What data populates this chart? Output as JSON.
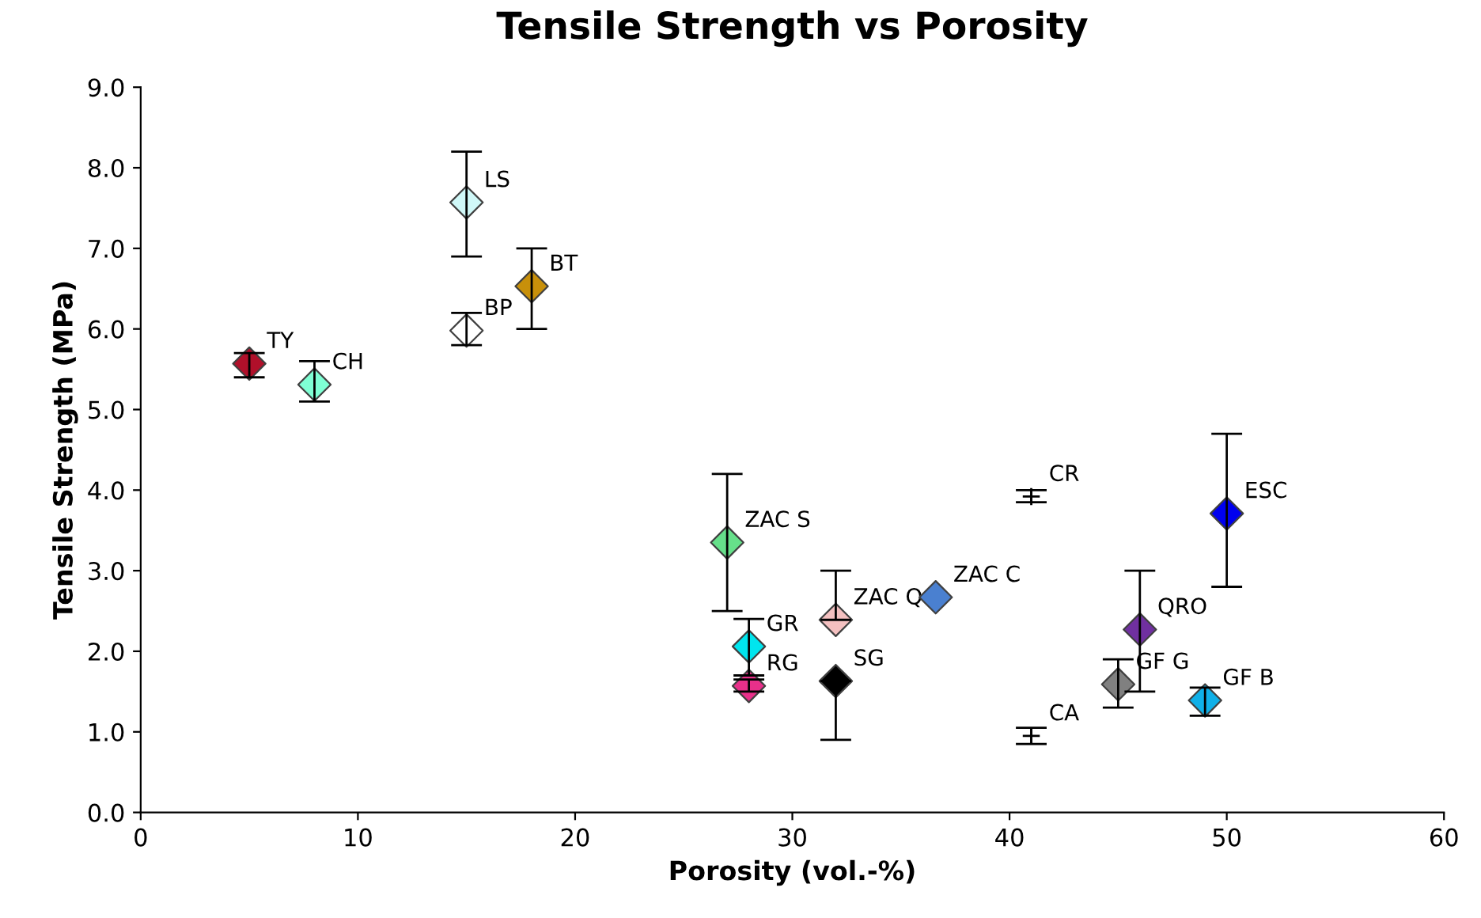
{
  "chart_data": {
    "type": "scatter",
    "title": "Tensile Strength vs Porosity",
    "xlabel": "Porosity (vol.-%)",
    "ylabel": "Tensile Strength (MPa)",
    "marker": "diamond",
    "legend": false,
    "grid": false,
    "xlim": [
      0,
      60
    ],
    "xticks": [
      0,
      10,
      20,
      30,
      40,
      50,
      60
    ],
    "ylim": [
      0,
      9
    ],
    "yticks": [
      {
        "value": 0,
        "label": "0.0"
      },
      {
        "value": 1,
        "label": "1.0"
      },
      {
        "value": 2,
        "label": "2.0"
      },
      {
        "value": 3,
        "label": "3.0"
      },
      {
        "value": 4,
        "label": "4.0"
      },
      {
        "value": 5,
        "label": "5.0"
      },
      {
        "value": 6,
        "label": "6.0"
      },
      {
        "value": 7,
        "label": "7.0"
      },
      {
        "value": 8,
        "label": "8.0"
      },
      {
        "value": 9,
        "label": "9.0"
      }
    ],
    "series": [
      {
        "name": "TY",
        "color": "#b0102a",
        "x": [
          5
        ],
        "values": [
          5.57
        ],
        "errors": [
          [
            5.4,
            5.7
          ]
        ]
      },
      {
        "name": "CH",
        "color": "#7fffd4",
        "x": [
          8
        ],
        "values": [
          5.31
        ],
        "errors": [
          [
            5.1,
            5.6
          ]
        ]
      },
      {
        "name": "LS",
        "color": "#d0f8f8",
        "x": [
          15
        ],
        "values": [
          7.57
        ],
        "errors": [
          [
            6.9,
            8.2
          ]
        ]
      },
      {
        "name": "BP",
        "color": "#ffffff",
        "x": [
          15
        ],
        "values": [
          5.98
        ],
        "errors": [
          [
            5.8,
            6.2
          ]
        ]
      },
      {
        "name": "BT",
        "color": "#c8900a",
        "x": [
          18
        ],
        "values": [
          6.53
        ],
        "errors": [
          [
            6.0,
            7.0
          ]
        ]
      },
      {
        "name": "ZAC S",
        "color": "#66e08a",
        "x": [
          27
        ],
        "values": [
          3.35
        ],
        "errors": [
          [
            2.5,
            4.2
          ]
        ]
      },
      {
        "name": "GR",
        "color": "#00e5ee",
        "x": [
          28
        ],
        "values": [
          2.06
        ],
        "errors": [
          [
            1.7,
            2.4
          ]
        ]
      },
      {
        "name": "RG",
        "color": "#e8308a",
        "x": [
          28
        ],
        "values": [
          1.57
        ],
        "errors": [
          [
            1.5,
            1.65
          ]
        ]
      },
      {
        "name": "ZAC Q",
        "color": "#f4c0c0",
        "x": [
          32
        ],
        "values": [
          2.39
        ],
        "errors": [
          [
            2.39,
            3.0
          ]
        ]
      },
      {
        "name": "SG",
        "color": "#000000",
        "x": [
          32
        ],
        "values": [
          1.63
        ],
        "errors": [
          [
            0.9,
            1.63
          ]
        ]
      },
      {
        "name": "ZAC C",
        "color": "#4a80d0",
        "x": [
          36.6
        ],
        "values": [
          2.67
        ]
      },
      {
        "name": "CR",
        "marker": "cross",
        "color": "#000000",
        "x": [
          41
        ],
        "values": [
          3.92
        ],
        "errors": [
          [
            3.85,
            4.0
          ]
        ]
      },
      {
        "name": "CA",
        "marker": "cross",
        "color": "#000000",
        "x": [
          41
        ],
        "values": [
          0.95
        ],
        "errors": [
          [
            0.85,
            1.05
          ]
        ]
      },
      {
        "name": "GF G",
        "color": "#808080",
        "x": [
          45
        ],
        "values": [
          1.59
        ],
        "errors": [
          [
            1.3,
            1.9
          ]
        ]
      },
      {
        "name": "QRO",
        "color": "#7030a0",
        "x": [
          46
        ],
        "values": [
          2.27
        ],
        "errors": [
          [
            1.5,
            3.0
          ]
        ]
      },
      {
        "name": "GF B",
        "color": "#10b0e8",
        "x": [
          49
        ],
        "values": [
          1.39
        ],
        "errors": [
          [
            1.2,
            1.55
          ]
        ]
      },
      {
        "name": "ESC",
        "color": "#0000ee",
        "x": [
          50
        ],
        "values": [
          3.71
        ],
        "errors": [
          [
            2.8,
            4.7
          ]
        ]
      }
    ]
  }
}
